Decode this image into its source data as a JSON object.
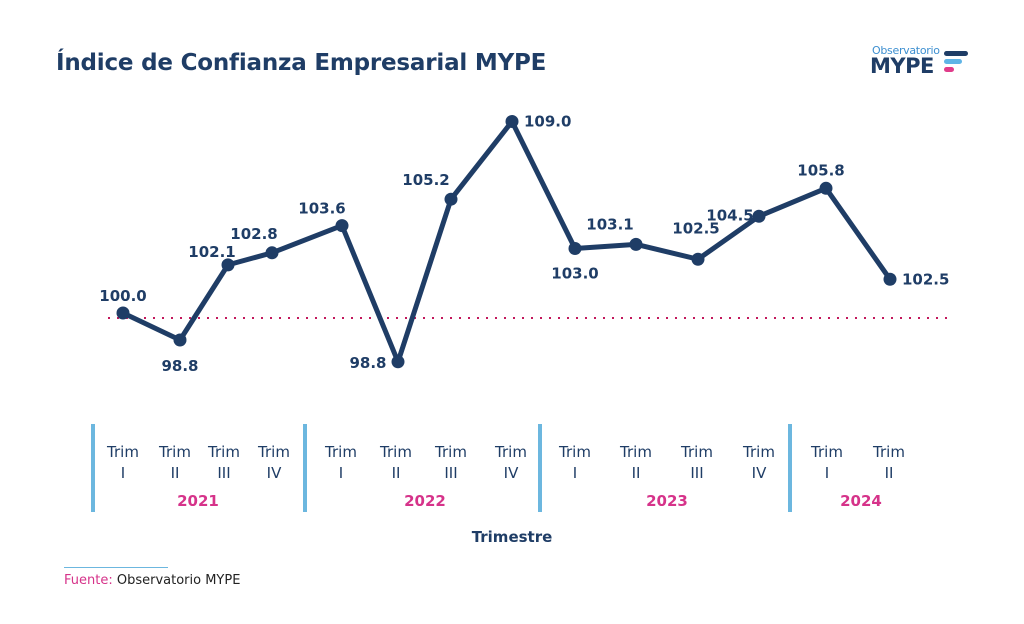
{
  "header": {
    "title": "Índice de Confianza Empresarial MYPE",
    "logo_top": "Observatorio",
    "logo_main": "MYPE"
  },
  "colors": {
    "line": "#1f3d66",
    "reference_line": "#c2185b",
    "year_label": "#d6338a",
    "separator": "#6cb7df"
  },
  "chart_data": {
    "type": "line",
    "title": "Índice de Confianza Empresarial MYPE",
    "xlabel": "Trimestre",
    "ylabel": "",
    "x": [
      "2021 Trim I",
      "2021 Trim II",
      "2021 Trim III",
      "2021 Trim IV",
      "2022 Trim I",
      "2022 Trim II",
      "2022 Trim III",
      "2022 Trim IV",
      "2023 Trim I",
      "2023 Trim II",
      "2023 Trim III",
      "2023 Trim IV",
      "2024 Trim I",
      "2024 Trim II"
    ],
    "series": [
      {
        "name": "Índice de Confianza Empresarial MYPE",
        "values": [
          100.0,
          98.8,
          102.1,
          102.8,
          103.6,
          98.8,
          105.2,
          109.0,
          103.0,
          103.1,
          102.5,
          104.5,
          105.8,
          102.5
        ]
      }
    ],
    "data_labels": [
      "100.0",
      "98.8",
      "102.1",
      "102.8",
      "103.6",
      "98.8",
      "105.2",
      "109.0",
      "103.0",
      "103.1",
      "102.5",
      "104.5",
      "105.8",
      "102.5"
    ],
    "reference_line": {
      "value": 100.0,
      "style": "dotted"
    },
    "grid": false,
    "legend": "none",
    "groups": [
      {
        "year": "2021",
        "quarters": [
          [
            "Trim",
            "I"
          ],
          [
            "Trim",
            "II"
          ],
          [
            "Trim",
            "III"
          ],
          [
            "Trim",
            "IV"
          ]
        ]
      },
      {
        "year": "2022",
        "quarters": [
          [
            "Trim",
            "I"
          ],
          [
            "Trim",
            "II"
          ],
          [
            "Trim",
            "III"
          ],
          [
            "Trim",
            "IV"
          ]
        ]
      },
      {
        "year": "2023",
        "quarters": [
          [
            "Trim",
            "I"
          ],
          [
            "Trim",
            "II"
          ],
          [
            "Trim",
            "III"
          ],
          [
            "Trim",
            "IV"
          ]
        ]
      },
      {
        "year": "2024",
        "quarters": [
          [
            "Trim",
            "I"
          ],
          [
            "Trim",
            "II"
          ]
        ]
      }
    ]
  },
  "footer": {
    "source_label": "Fuente:",
    "source_text": " Observatorio MYPE"
  }
}
